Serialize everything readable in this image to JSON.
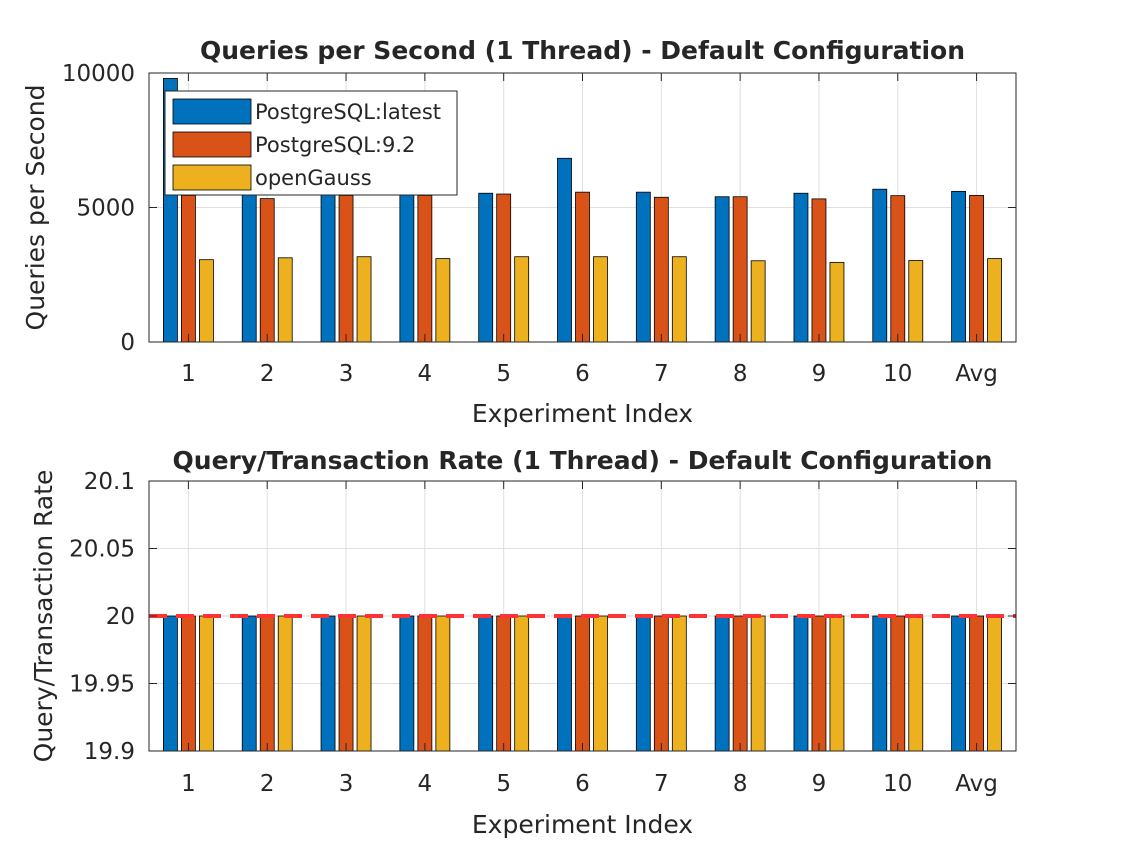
{
  "chart_data": [
    {
      "type": "bar",
      "title": "Queries per Second (1 Thread) - Default Configuration",
      "xlabel": "Experiment Index",
      "ylabel": "Queries per Second",
      "categories": [
        "1",
        "2",
        "3",
        "4",
        "5",
        "6",
        "7",
        "8",
        "9",
        "10",
        "Avg"
      ],
      "ylim": [
        0,
        10000
      ],
      "yticks": [
        "0",
        "5000",
        "10000"
      ],
      "grid": true,
      "legend": "top-left",
      "series": [
        {
          "name": "PostgreSQL:latest",
          "color": "#0072BD",
          "values": [
            9800,
            5500,
            5500,
            5500,
            5530,
            6830,
            5570,
            5400,
            5530,
            5680,
            5600
          ]
        },
        {
          "name": "PostgreSQL:9.2",
          "color": "#D95319",
          "values": [
            5450,
            5330,
            5450,
            5450,
            5500,
            5570,
            5380,
            5400,
            5320,
            5440,
            5450
          ]
        },
        {
          "name": "openGauss",
          "color": "#EDB120",
          "values": [
            3060,
            3130,
            3170,
            3100,
            3170,
            3170,
            3170,
            3020,
            2960,
            3030,
            3100
          ]
        }
      ]
    },
    {
      "type": "bar",
      "title": "Query/Transaction Rate (1 Thread) - Default Configuration",
      "xlabel": "Experiment Index",
      "ylabel": "Query/Transaction Rate",
      "categories": [
        "1",
        "2",
        "3",
        "4",
        "5",
        "6",
        "7",
        "8",
        "9",
        "10",
        "Avg"
      ],
      "ylim": [
        19.9,
        20.1
      ],
      "yticks": [
        "19.9",
        "19.95",
        "20",
        "20.05",
        "20.1"
      ],
      "grid": true,
      "reference_line": {
        "value": 20,
        "color": "#ff3333",
        "style": "dashed"
      },
      "series": [
        {
          "name": "PostgreSQL:latest",
          "color": "#0072BD",
          "values": [
            20,
            20,
            20,
            20,
            20,
            20,
            20,
            20,
            20,
            20,
            20
          ]
        },
        {
          "name": "PostgreSQL:9.2",
          "color": "#D95319",
          "values": [
            20,
            20,
            20,
            20,
            20,
            20,
            20,
            20,
            20,
            20,
            20
          ]
        },
        {
          "name": "openGauss",
          "color": "#EDB120",
          "values": [
            20,
            20,
            20,
            20,
            20,
            20,
            20,
            20,
            20,
            20,
            20
          ]
        }
      ]
    }
  ]
}
